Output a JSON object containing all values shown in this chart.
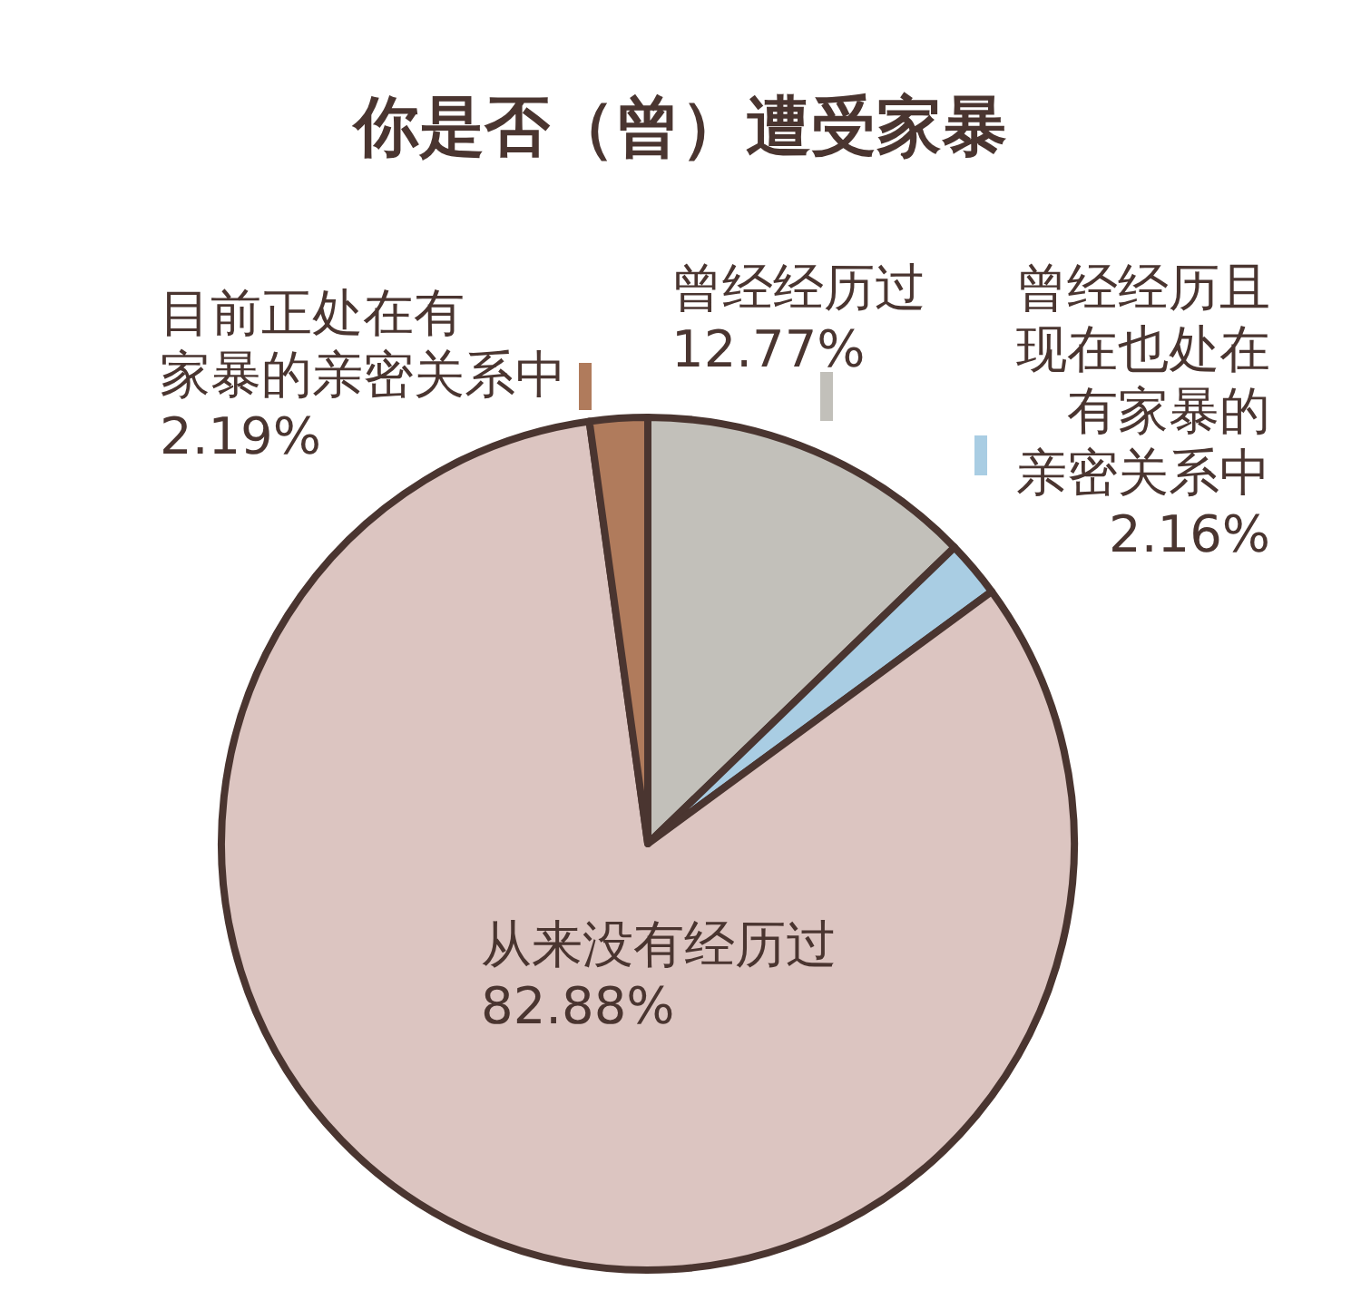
{
  "chart_data": {
    "type": "pie",
    "title": "你是否（曾）遭受家暴",
    "categories": [
      "曾经经历过",
      "曾经经历且现在也处在有家暴的亲密关系中",
      "从来没有经历过",
      "目前正处在有家暴的亲密关系中"
    ],
    "values": [
      12.77,
      2.16,
      82.88,
      2.19
    ],
    "value_labels": [
      "12.77%",
      "2.16%",
      "82.88%",
      "2.19%"
    ],
    "colors": [
      "#c2c0ba",
      "#a9cde3",
      "#dcc5c1",
      "#b07b5c"
    ]
  }
}
